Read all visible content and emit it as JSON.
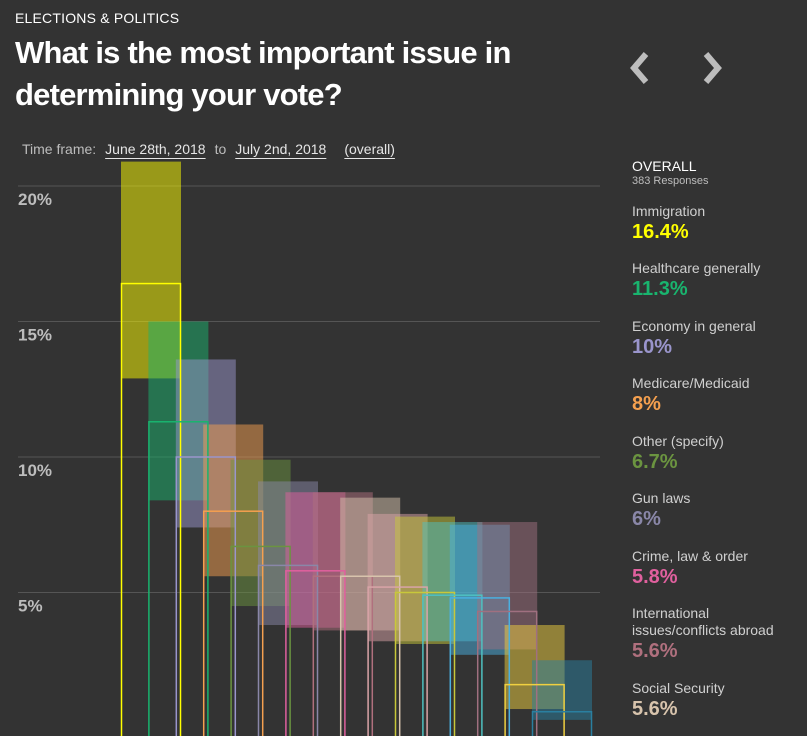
{
  "header": {
    "kicker": "ELECTIONS & POLITICS",
    "title": "What is the most important issue in determining your vote?"
  },
  "nav": {
    "prev_icon": "chevron-left-icon",
    "next_icon": "chevron-right-icon"
  },
  "timeframe": {
    "label": "Time frame:",
    "start": "June 28th, 2018",
    "separator": "to",
    "end": "July 2nd, 2018",
    "overall_link": "(overall)"
  },
  "legend": {
    "heading": "OVERALL",
    "responses": "383 Responses",
    "items": [
      {
        "label": "Immigration",
        "value": "16.4%",
        "color": "#ffff00"
      },
      {
        "label": "Healthcare generally",
        "value": "11.3%",
        "color": "#19b46e"
      },
      {
        "label": "Economy in general",
        "value": "10%",
        "color": "#9a95cc"
      },
      {
        "label": "Medicare/Medicaid",
        "value": "8%",
        "color": "#f5a04f"
      },
      {
        "label": "Other (specify)",
        "value": "6.7%",
        "color": "#6b9440"
      },
      {
        "label": "Gun laws",
        "value": "6%",
        "color": "#8a87a8"
      },
      {
        "label": "Crime, law & order",
        "value": "5.8%",
        "color": "#e0609e"
      },
      {
        "label": "International issues/conflicts abroad",
        "value": "5.6%",
        "color": "#b0707e"
      },
      {
        "label": "Social Security",
        "value": "5.6%",
        "color": "#d8c4ad"
      }
    ]
  },
  "chart_data": {
    "type": "bar",
    "ylim": [
      0,
      21
    ],
    "yticks": [
      5,
      10,
      15,
      20
    ],
    "ytick_labels": [
      "5%",
      "10%",
      "15%",
      "20%"
    ],
    "grid": true,
    "series": [
      {
        "values": [
          16.4,
          11.3,
          10,
          8,
          6.7,
          6,
          5.8,
          5.6,
          5.6,
          5.2,
          5.0,
          4.9,
          4.8,
          4.3,
          1.6,
          0.6
        ]
      }
    ],
    "error_ranges": [
      [
        12.9,
        20.9
      ],
      [
        8.4,
        15.0
      ],
      [
        7.4,
        13.6
      ],
      [
        5.6,
        11.2
      ],
      [
        4.5,
        9.9
      ],
      [
        3.8,
        9.1
      ],
      [
        3.7,
        8.7
      ],
      [
        3.6,
        8.7
      ],
      [
        3.6,
        8.5
      ],
      [
        3.2,
        7.9
      ],
      [
        3.1,
        7.8
      ],
      [
        3.2,
        7.6
      ],
      [
        2.7,
        7.5
      ],
      [
        2.9,
        7.6
      ],
      [
        0.7,
        3.8
      ],
      [
        0.3,
        2.5
      ]
    ],
    "bar_colors": [
      "#ffff00",
      "#19b46e",
      "#9a95cc",
      "#f5a04f",
      "#6b9440",
      "#8a87a8",
      "#e0609e",
      "#b0707e",
      "#d8c4ad",
      "#d9a4a8",
      "#c8c83a",
      "#4fc0c0",
      "#4ab0e0",
      "#a07080",
      "#f0d040",
      "#2a7fa0"
    ]
  }
}
